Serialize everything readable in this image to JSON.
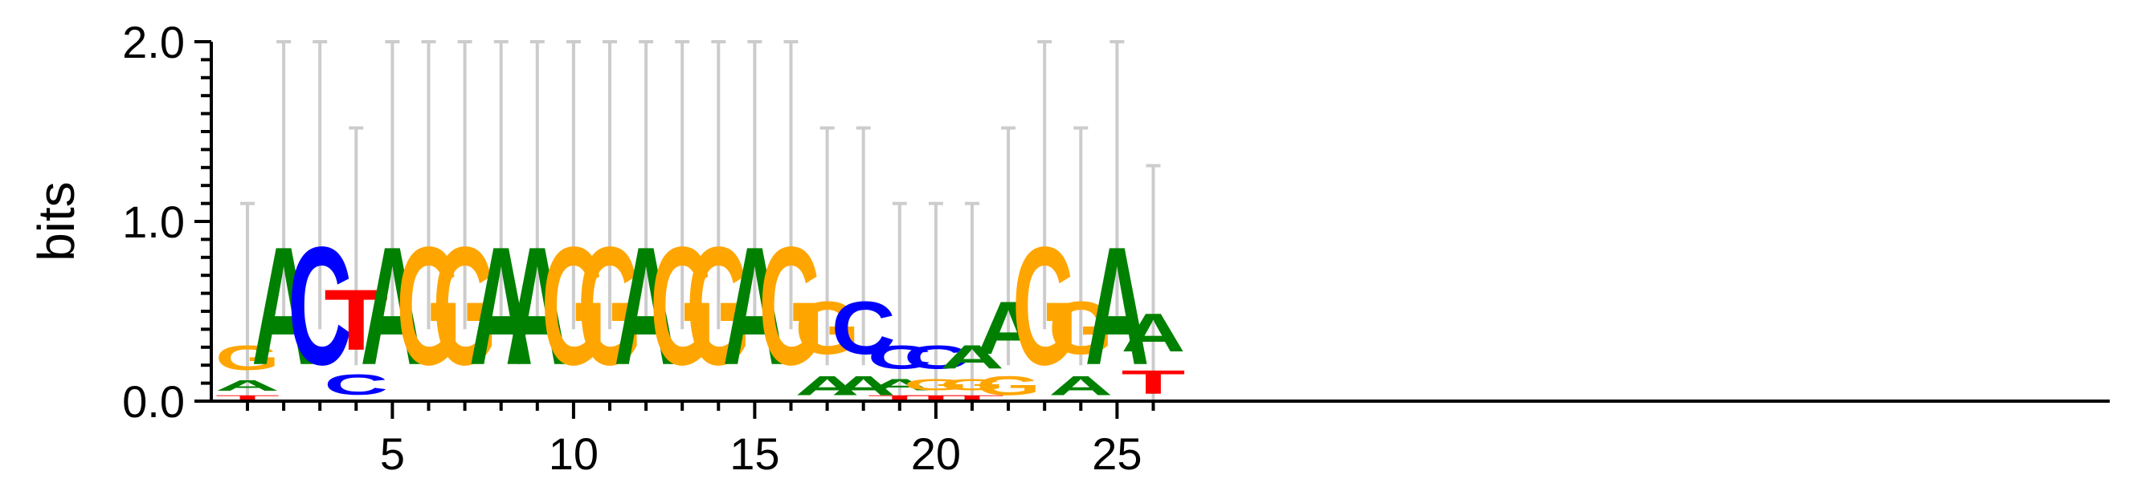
{
  "chart_data": {
    "type": "sequence-logo",
    "ylabel": "bits",
    "ylim": [
      0,
      2
    ],
    "y_ticks": [
      "0.0",
      "1.0",
      "2.0"
    ],
    "xlim": [
      1,
      26
    ],
    "x_ticks": [
      "5",
      "10",
      "15",
      "20",
      "25"
    ],
    "colors": {
      "A": "#008000",
      "C": "#0000ff",
      "G": "#ffa500",
      "T": "#ff0000",
      "error_bar": "#cccccc"
    },
    "positions": [
      {
        "pos": 1,
        "letters": [
          [
            "T",
            0.04
          ],
          [
            "A",
            0.09
          ],
          [
            "G",
            0.22
          ]
        ],
        "error_bar": [
          0.0,
          1.1
        ]
      },
      {
        "pos": 2,
        "letters": [
          [
            "A",
            1.05
          ]
        ],
        "error_bar": [
          0.4,
          2.0
        ]
      },
      {
        "pos": 3,
        "letters": [
          [
            "C",
            1.05
          ]
        ],
        "error_bar": [
          0.4,
          2.0
        ]
      },
      {
        "pos": 4,
        "letters": [
          [
            "C",
            0.18
          ],
          [
            "T",
            0.54
          ]
        ],
        "error_bar": [
          0.2,
          1.52
        ]
      },
      {
        "pos": 5,
        "letters": [
          [
            "A",
            1.05
          ]
        ],
        "error_bar": [
          0.4,
          2.0
        ]
      },
      {
        "pos": 6,
        "letters": [
          [
            "G",
            1.05
          ]
        ],
        "error_bar": [
          0.4,
          2.0
        ]
      },
      {
        "pos": 7,
        "letters": [
          [
            "G",
            1.05
          ]
        ],
        "error_bar": [
          0.4,
          2.0
        ]
      },
      {
        "pos": 8,
        "letters": [
          [
            "A",
            1.05
          ]
        ],
        "error_bar": [
          0.4,
          2.0
        ]
      },
      {
        "pos": 9,
        "letters": [
          [
            "A",
            1.05
          ]
        ],
        "error_bar": [
          0.4,
          2.0
        ]
      },
      {
        "pos": 10,
        "letters": [
          [
            "G",
            1.05
          ]
        ],
        "error_bar": [
          0.4,
          2.0
        ]
      },
      {
        "pos": 11,
        "letters": [
          [
            "G",
            1.05
          ]
        ],
        "error_bar": [
          0.4,
          2.0
        ]
      },
      {
        "pos": 12,
        "letters": [
          [
            "A",
            1.05
          ]
        ],
        "error_bar": [
          0.4,
          2.0
        ]
      },
      {
        "pos": 13,
        "letters": [
          [
            "G",
            1.05
          ]
        ],
        "error_bar": [
          0.4,
          2.0
        ]
      },
      {
        "pos": 14,
        "letters": [
          [
            "G",
            1.05
          ]
        ],
        "error_bar": [
          0.4,
          2.0
        ]
      },
      {
        "pos": 15,
        "letters": [
          [
            "A",
            1.05
          ]
        ],
        "error_bar": [
          0.4,
          2.0
        ]
      },
      {
        "pos": 16,
        "letters": [
          [
            "G",
            1.05
          ]
        ],
        "error_bar": [
          0.4,
          2.0
        ]
      },
      {
        "pos": 17,
        "letters": [
          [
            "A",
            0.17
          ],
          [
            "G",
            0.47
          ]
        ],
        "error_bar": [
          0.2,
          1.52
        ]
      },
      {
        "pos": 18,
        "letters": [
          [
            "A",
            0.17
          ],
          [
            "C",
            0.47
          ]
        ],
        "error_bar": [
          0.2,
          1.52
        ]
      },
      {
        "pos": 19,
        "letters": [
          [
            "T",
            0.04
          ],
          [
            "A",
            0.1
          ],
          [
            "C",
            0.21
          ]
        ],
        "error_bar": [
          0.0,
          1.1
        ]
      },
      {
        "pos": 20,
        "letters": [
          [
            "T",
            0.04
          ],
          [
            "G",
            0.1
          ],
          [
            "C",
            0.21
          ]
        ],
        "error_bar": [
          0.0,
          1.1
        ]
      },
      {
        "pos": 21,
        "letters": [
          [
            "T",
            0.04
          ],
          [
            "G",
            0.1
          ],
          [
            "A",
            0.21
          ]
        ],
        "error_bar": [
          0.0,
          1.1
        ]
      },
      {
        "pos": 22,
        "letters": [
          [
            "G",
            0.17
          ],
          [
            "A",
            0.47
          ]
        ],
        "error_bar": [
          0.2,
          1.52
        ]
      },
      {
        "pos": 23,
        "letters": [
          [
            "G",
            1.05
          ]
        ],
        "error_bar": [
          0.4,
          2.0
        ]
      },
      {
        "pos": 24,
        "letters": [
          [
            "A",
            0.17
          ],
          [
            "G",
            0.47
          ]
        ],
        "error_bar": [
          0.2,
          1.52
        ]
      },
      {
        "pos": 25,
        "letters": [
          [
            "A",
            1.05
          ]
        ],
        "error_bar": [
          0.4,
          2.0
        ]
      },
      {
        "pos": 26,
        "letters": [
          [
            "T",
            0.21
          ],
          [
            "A",
            0.34
          ]
        ],
        "error_bar": [
          0.0,
          1.31
        ]
      }
    ]
  }
}
